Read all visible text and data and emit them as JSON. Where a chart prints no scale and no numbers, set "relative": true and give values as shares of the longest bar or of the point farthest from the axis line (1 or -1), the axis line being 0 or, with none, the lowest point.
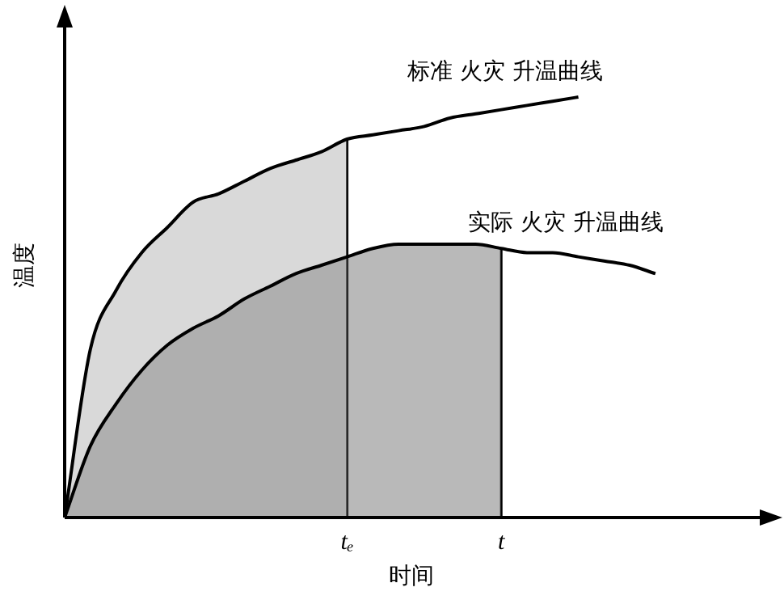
{
  "chart_data": {
    "type": "line",
    "relative": true,
    "xlabel": "时间",
    "ylabel": "温度",
    "categories": [
      null,
      null,
      null,
      null,
      null,
      null,
      null,
      null,
      null,
      null,
      null,
      "tₑ",
      null,
      null,
      null,
      null,
      null,
      "t",
      null,
      null,
      null,
      null,
      null,
      null,
      null,
      null,
      null,
      null
    ],
    "series": [
      {
        "name": "标准 火灾 升温曲线",
        "color": "#000000",
        "values": [
          0,
          0.4,
          0.54,
          0.63,
          0.69,
          0.75,
          0.77,
          0.8,
          0.83,
          0.85,
          0.87,
          0.9,
          0.91,
          0.92,
          0.93,
          0.95,
          0.96,
          0.97,
          0.98,
          0.99,
          1,
          null,
          null,
          null,
          null,
          null,
          null,
          null
        ]
      },
      {
        "name": "实际 火灾 升温曲线",
        "color": "#000000",
        "values": [
          0,
          0.17,
          0.27,
          0.35,
          0.41,
          0.45,
          0.48,
          0.52,
          0.55,
          0.58,
          0.6,
          0.62,
          0.64,
          0.65,
          0.65,
          0.65,
          0.65,
          0.64,
          0.63,
          0.63,
          0.62,
          0.61,
          0.6,
          0.58,
          null,
          null,
          null,
          null
        ]
      },
      {
        "type": "area",
        "color": "#a0a0a0",
        "values": [
          0,
          0.4,
          0.54,
          0.63,
          0.69,
          0.75,
          0.77,
          0.8,
          0.83,
          0.85,
          0.87,
          0.9,
          null,
          null,
          null,
          null,
          null,
          null,
          null,
          null,
          null,
          null,
          null,
          null,
          null,
          null,
          null,
          null
        ]
      },
      {
        "type": "area",
        "color": "#505050",
        "values": [
          0,
          0.17,
          0.27,
          0.35,
          0.41,
          0.45,
          0.48,
          0.52,
          0.55,
          0.58,
          0.6,
          0.62,
          0.64,
          0.65,
          0.65,
          0.65,
          0.65,
          0.64,
          null,
          null,
          null,
          null,
          null,
          null,
          null,
          null,
          null,
          null
        ]
      }
    ],
    "legend": false,
    "marker": "none",
    "line_style": "solid"
  }
}
